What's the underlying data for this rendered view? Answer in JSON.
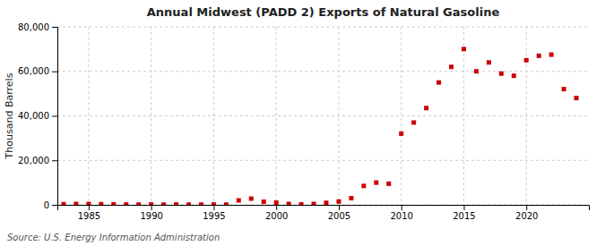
{
  "chart_data": {
    "type": "scatter",
    "title": "Annual Midwest (PADD 2) Exports of Natural Gasoline",
    "y_label": "Thousand Barrels",
    "source": "Source: U.S. Energy Information Administration",
    "x": [
      1983,
      1984,
      1985,
      1986,
      1987,
      1988,
      1989,
      1990,
      1991,
      1992,
      1993,
      1994,
      1995,
      1996,
      1997,
      1998,
      1999,
      2000,
      2001,
      2002,
      2003,
      2004,
      2005,
      2006,
      2007,
      2008,
      2009,
      2010,
      2011,
      2012,
      2013,
      2014,
      2015,
      2016,
      2017,
      2018,
      2019,
      2020,
      2021,
      2022,
      2023,
      2024
    ],
    "values": [
      300,
      400,
      400,
      300,
      200,
      150,
      100,
      150,
      100,
      150,
      100,
      100,
      150,
      100,
      2000,
      2800,
      1400,
      1000,
      400,
      200,
      400,
      900,
      1500,
      3000,
      8500,
      10000,
      9500,
      32000,
      37000,
      43500,
      55000,
      62000,
      70000,
      60000,
      64000,
      59000,
      58000,
      65000,
      67000,
      67500,
      52000,
      48000
    ],
    "color": "#cc0000",
    "marker": "square",
    "xlim": [
      1982.5,
      2025
    ],
    "xticks": [
      1985,
      1990,
      1995,
      2000,
      2005,
      2010,
      2015,
      2020
    ],
    "ylim": [
      0,
      80000
    ],
    "yticks": [
      0,
      {
        "value": 20000,
        "label": "20,000"
      },
      {
        "value": 40000,
        "label": "40,000"
      },
      {
        "value": 60000,
        "label": "60,000"
      },
      {
        "value": 80000,
        "label": "80,000"
      }
    ],
    "grid": true
  }
}
